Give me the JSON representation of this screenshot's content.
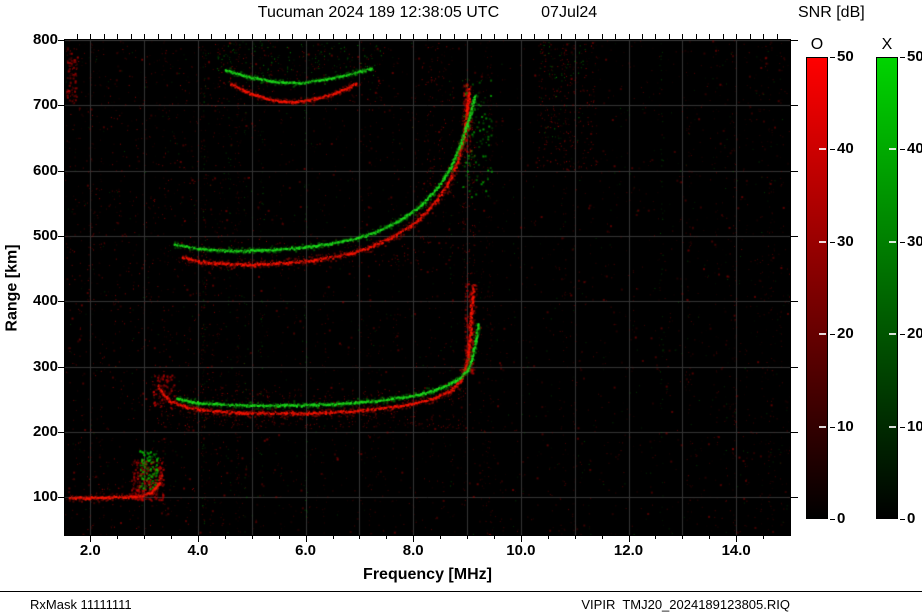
{
  "title": {
    "main": "Tucuman 2024 189 12:38:05 UTC",
    "date": "07Jul24"
  },
  "axes": {
    "x_label": "Frequency [MHz]",
    "y_label": "Range [km]",
    "x_ticks": [
      2,
      4,
      6,
      8,
      10,
      12,
      14
    ],
    "x_tick_labels": [
      "2.0",
      "4.0",
      "6.0",
      "8.0",
      "10.0",
      "12.0",
      "14.0"
    ],
    "y_ticks": [
      100,
      200,
      300,
      400,
      500,
      600,
      700,
      800
    ],
    "x_range": [
      1.53,
      15.0
    ],
    "y_range": [
      42,
      800
    ]
  },
  "colorbar": {
    "title": "SNR [dB]",
    "ticks": [
      50,
      40,
      30,
      20,
      10,
      0
    ],
    "range_db": [
      0,
      50
    ],
    "bars": [
      {
        "label": "O",
        "top_color": "#ff0000"
      },
      {
        "label": "X",
        "top_color": "#00d400"
      }
    ]
  },
  "footer": {
    "left": "RxMask 11111111",
    "right": "VIPIR  TMJ20_2024189123805.RIQ"
  },
  "chart_data": {
    "type": "heatmap",
    "title": "Tucuman 2024 189 12:38:05 UTC 07Jul24",
    "station": "Tucuman",
    "timestamp": "2024 189 12:38:05 UTC",
    "xlabel": "Frequency [MHz]",
    "ylabel": "Range [km]",
    "x_range": [
      1.53,
      15.0
    ],
    "y_range": [
      42,
      800
    ],
    "snr_range_db": [
      0,
      50
    ],
    "modes": {
      "O": "red",
      "X": "green"
    },
    "features": {
      "E_layer_km": 100,
      "F_trace_min_km": 230,
      "second_hop_km": 460,
      "foF2_est_MHz": 9.1
    },
    "grid": {
      "x": [
        2,
        3,
        4,
        5,
        6,
        7,
        8,
        9,
        10,
        11,
        12,
        13,
        14
      ],
      "y": [
        100,
        200,
        300,
        400,
        500,
        600,
        700,
        800
      ]
    },
    "traces": [
      {
        "name": "E-layer-O",
        "mode": "O",
        "w": 2.5,
        "points": [
          [
            1.6,
            100
          ],
          [
            2.1,
            100
          ],
          [
            2.6,
            101
          ],
          [
            2.95,
            103
          ],
          [
            3.12,
            108
          ],
          [
            3.25,
            120
          ],
          [
            3.33,
            138
          ]
        ]
      },
      {
        "name": "F-layer-O",
        "mode": "O",
        "w": 3,
        "points": [
          [
            3.25,
            272
          ],
          [
            3.35,
            258
          ],
          [
            3.5,
            247
          ],
          [
            3.8,
            238
          ],
          [
            4.2,
            233
          ],
          [
            4.8,
            230
          ],
          [
            5.5,
            229
          ],
          [
            6.2,
            230
          ],
          [
            6.8,
            232
          ],
          [
            7.3,
            236
          ],
          [
            7.8,
            241
          ],
          [
            8.2,
            248
          ],
          [
            8.5,
            256
          ],
          [
            8.75,
            267
          ],
          [
            8.9,
            283
          ],
          [
            9.0,
            310
          ],
          [
            9.05,
            350
          ],
          [
            9.08,
            395
          ],
          [
            9.1,
            428
          ]
        ]
      },
      {
        "name": "F-layer-X",
        "mode": "X",
        "w": 2.2,
        "points": [
          [
            3.6,
            252
          ],
          [
            4.0,
            245
          ],
          [
            4.6,
            242
          ],
          [
            5.3,
            241
          ],
          [
            6.0,
            242
          ],
          [
            6.8,
            245
          ],
          [
            7.4,
            249
          ],
          [
            7.9,
            255
          ],
          [
            8.3,
            262
          ],
          [
            8.6,
            271
          ],
          [
            8.85,
            283
          ],
          [
            9.0,
            295
          ],
          [
            9.08,
            312
          ],
          [
            9.15,
            340
          ],
          [
            9.2,
            368
          ]
        ]
      },
      {
        "name": "2F-O",
        "mode": "O",
        "w": 3,
        "points": [
          [
            3.7,
            468
          ],
          [
            4.0,
            461
          ],
          [
            4.5,
            458
          ],
          [
            5.0,
            457
          ],
          [
            5.5,
            459
          ],
          [
            6.0,
            462
          ],
          [
            6.4,
            467
          ],
          [
            6.8,
            474
          ],
          [
            7.2,
            484
          ],
          [
            7.6,
            499
          ],
          [
            8.0,
            520
          ],
          [
            8.3,
            543
          ],
          [
            8.6,
            575
          ],
          [
            8.8,
            612
          ],
          [
            8.95,
            660
          ],
          [
            9.0,
            700
          ],
          [
            9.03,
            728
          ]
        ]
      },
      {
        "name": "2F-X",
        "mode": "X",
        "w": 2.2,
        "points": [
          [
            3.55,
            488
          ],
          [
            4.0,
            481
          ],
          [
            4.6,
            478
          ],
          [
            5.2,
            479
          ],
          [
            5.8,
            482
          ],
          [
            6.4,
            488
          ],
          [
            6.9,
            496
          ],
          [
            7.3,
            507
          ],
          [
            7.7,
            523
          ],
          [
            8.1,
            545
          ],
          [
            8.45,
            575
          ],
          [
            8.7,
            608
          ],
          [
            8.9,
            648
          ],
          [
            9.05,
            688
          ],
          [
            9.15,
            718
          ]
        ]
      },
      {
        "name": "3F-O",
        "mode": "O",
        "w": 2.2,
        "points": [
          [
            4.6,
            733
          ],
          [
            5.0,
            718
          ],
          [
            5.4,
            708
          ],
          [
            5.8,
            706
          ],
          [
            6.2,
            711
          ],
          [
            6.6,
            721
          ],
          [
            6.95,
            735
          ]
        ]
      },
      {
        "name": "3F-X",
        "mode": "X",
        "w": 2,
        "points": [
          [
            4.5,
            755
          ],
          [
            4.9,
            745
          ],
          [
            5.4,
            737
          ],
          [
            5.9,
            735
          ],
          [
            6.4,
            741
          ],
          [
            6.9,
            750
          ],
          [
            7.25,
            758
          ]
        ]
      }
    ],
    "blobs": [
      {
        "f": [
          2.75,
          3.35
        ],
        "km": [
          96,
          158
        ],
        "color": "red",
        "count": 320,
        "size": 2
      },
      {
        "f": [
          2.9,
          3.25
        ],
        "km": [
          112,
          172
        ],
        "color": "green",
        "count": 150,
        "size": 2
      },
      {
        "f": [
          3.15,
          3.55
        ],
        "km": [
          235,
          288
        ],
        "color": "red",
        "count": 110,
        "size": 2
      },
      {
        "f": [
          3.3,
          9.0
        ],
        "km": [
          205,
          232
        ],
        "color": "red",
        "count": 240,
        "size": 1
      },
      {
        "f": [
          3.5,
          9.0
        ],
        "km": [
          245,
          266
        ],
        "color": "red",
        "count": 150,
        "size": 1
      },
      {
        "f": [
          3.6,
          9.0
        ],
        "km": [
          448,
          500
        ],
        "color": "red",
        "count": 150,
        "size": 1
      },
      {
        "f": [
          8.95,
          9.12
        ],
        "km": [
          290,
          428
        ],
        "color": "red",
        "count": 180,
        "size": 2
      },
      {
        "f": [
          8.9,
          9.15
        ],
        "km": [
          430,
          690
        ],
        "color": "red",
        "count": 110,
        "size": 1
      },
      {
        "f": [
          8.92,
          9.06
        ],
        "km": [
          630,
          735
        ],
        "color": "red",
        "count": 130,
        "size": 2
      },
      {
        "f": [
          8.9,
          9.45
        ],
        "km": [
          560,
          745
        ],
        "color": "green",
        "count": 110,
        "size": 2
      },
      {
        "f": [
          1.55,
          1.75
        ],
        "km": [
          700,
          790
        ],
        "color": "red",
        "count": 90,
        "size": 2
      },
      {
        "f": [
          10.3,
          11.4
        ],
        "km": [
          600,
          798
        ],
        "color": "red",
        "count": 260,
        "size": 1
      },
      {
        "f": [
          10.35,
          11.2
        ],
        "km": [
          640,
          798
        ],
        "color": "green",
        "count": 55,
        "size": 1
      },
      {
        "f": [
          8.15,
          8.75
        ],
        "km": [
          560,
          798
        ],
        "color": "red",
        "count": 130,
        "size": 1
      },
      {
        "f": [
          4.3,
          7.4
        ],
        "km": [
          745,
          796
        ],
        "color": "green",
        "count": 120,
        "size": 1
      },
      {
        "f": [
          4.3,
          7.5
        ],
        "km": [
          690,
          790
        ],
        "color": "red",
        "count": 150,
        "size": 1
      },
      {
        "f": [
          1.55,
          4.5
        ],
        "km": [
          45,
          795
        ],
        "color": "red",
        "count": 650,
        "size": 1
      }
    ],
    "noise": {
      "red": 2600,
      "green": 520,
      "columns": 55
    }
  }
}
